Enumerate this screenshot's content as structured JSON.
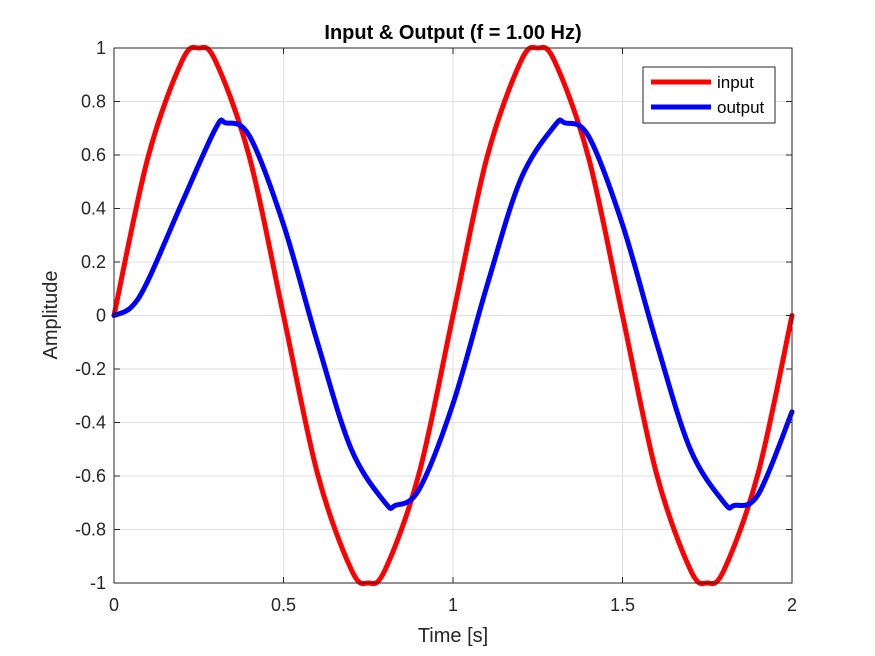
{
  "chart_data": {
    "type": "line",
    "title": "Input & Output (f = 1.00 Hz)",
    "xlabel": "Time [s]",
    "ylabel": "Amplitude",
    "xlim": [
      0,
      2
    ],
    "ylim": [
      -1,
      1
    ],
    "x_ticks": [
      "0",
      "0.5",
      "1",
      "1.5",
      "2"
    ],
    "y_ticks": [
      "1",
      "0.8",
      "0.6",
      "0.4",
      "0.2",
      "0",
      "-0.2",
      "-0.4",
      "-0.6",
      "-0.8",
      "-1"
    ],
    "grid": true,
    "legend_position": "top-right",
    "series": [
      {
        "name": "input",
        "color": "#ff0000",
        "x": [
          0,
          0.1,
          0.2,
          0.25,
          0.3,
          0.4,
          0.5,
          0.6,
          0.7,
          0.75,
          0.8,
          0.9,
          1.0,
          1.1,
          1.2,
          1.25,
          1.3,
          1.4,
          1.5,
          1.6,
          1.7,
          1.75,
          1.8,
          1.9,
          2.0
        ],
        "y": [
          0,
          0.59,
          0.95,
          1.0,
          0.95,
          0.59,
          0,
          -0.59,
          -0.95,
          -1.0,
          -0.95,
          -0.59,
          0,
          0.59,
          0.95,
          1.0,
          0.95,
          0.59,
          0,
          -0.59,
          -0.95,
          -1.0,
          -0.95,
          -0.59,
          0
        ]
      },
      {
        "name": "output",
        "color": "#0000ff",
        "x": [
          0,
          0.05,
          0.1,
          0.2,
          0.3,
          0.33,
          0.4,
          0.5,
          0.6,
          0.7,
          0.8,
          0.83,
          0.9,
          1.0,
          1.1,
          1.2,
          1.3,
          1.33,
          1.4,
          1.5,
          1.6,
          1.7,
          1.8,
          1.83,
          1.9,
          2.0
        ],
        "y": [
          0,
          0.03,
          0.13,
          0.42,
          0.7,
          0.72,
          0.67,
          0.34,
          -0.1,
          -0.5,
          -0.7,
          -0.71,
          -0.65,
          -0.33,
          0.11,
          0.51,
          0.71,
          0.72,
          0.67,
          0.34,
          -0.1,
          -0.5,
          -0.7,
          -0.71,
          -0.67,
          -0.36
        ]
      }
    ]
  }
}
